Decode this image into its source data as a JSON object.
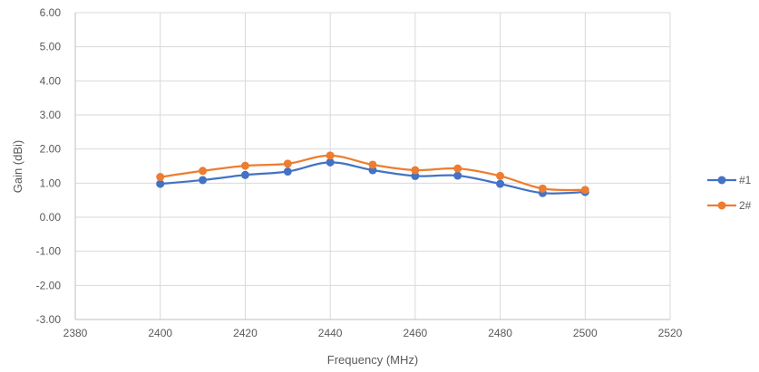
{
  "chart_data": {
    "type": "line",
    "title": "",
    "xlabel": "Frequency (MHz)",
    "ylabel": "Gain (dBi)",
    "xlim": [
      2380,
      2520
    ],
    "ylim": [
      -3.0,
      6.0
    ],
    "x_ticks": [
      2380,
      2400,
      2420,
      2440,
      2460,
      2480,
      2500,
      2520
    ],
    "x_tick_labels": [
      "2380",
      "2400",
      "2420",
      "2440",
      "2460",
      "2480",
      "2500",
      "2520"
    ],
    "y_ticks": [
      6.0,
      5.0,
      4.0,
      3.0,
      2.0,
      1.0,
      0.0,
      -1.0,
      -2.0,
      -3.0
    ],
    "y_tick_labels": [
      "6.00",
      "5.00",
      "4.00",
      "3.00",
      "2.00",
      "1.00",
      "0.00",
      "-1.00",
      "-2.00",
      "-3.00"
    ],
    "grid": true,
    "legend_position": "right",
    "x": [
      2400,
      2410,
      2420,
      2430,
      2440,
      2450,
      2460,
      2470,
      2480,
      2490,
      2500
    ],
    "series": [
      {
        "name": "#1",
        "color": "#4472C4",
        "values": [
          0.98,
          1.09,
          1.24,
          1.34,
          1.61,
          1.38,
          1.21,
          1.22,
          0.98,
          0.71,
          0.74
        ]
      },
      {
        "name": "2#",
        "color": "#ED7D31",
        "values": [
          1.18,
          1.36,
          1.51,
          1.57,
          1.81,
          1.54,
          1.38,
          1.43,
          1.21,
          0.84,
          0.8
        ]
      }
    ]
  }
}
